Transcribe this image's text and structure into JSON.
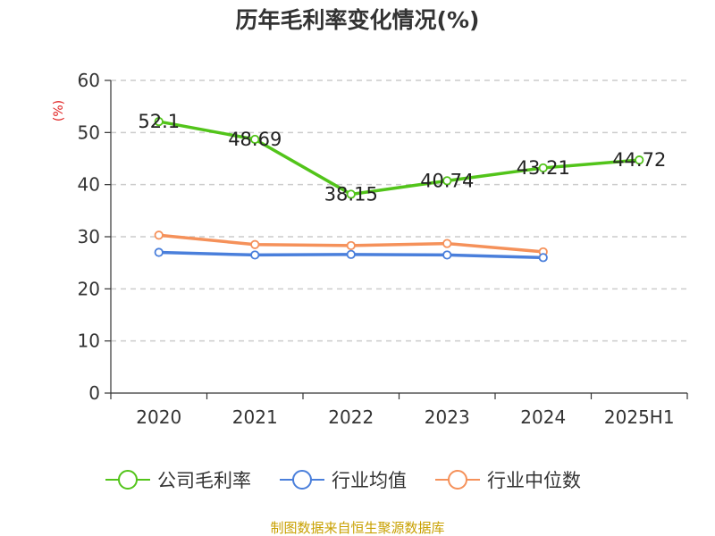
{
  "chart_data": {
    "type": "line",
    "title": "历年毛利率变化情况(%)",
    "ylabel": "(%)",
    "xlabel": "",
    "categories": [
      "2020",
      "2021",
      "2022",
      "2023",
      "2024",
      "2025H1"
    ],
    "ylim": [
      0,
      60
    ],
    "yticks": [
      0,
      10,
      20,
      30,
      40,
      50,
      60
    ],
    "grid": true,
    "legend_position": "bottom",
    "series": [
      {
        "name": "公司毛利率",
        "color": "#52c41a",
        "values": [
          52.1,
          48.69,
          38.15,
          40.74,
          43.21,
          44.72
        ],
        "labels": [
          "52.1",
          "48.69",
          "38.15",
          "40.74",
          "43.21",
          "44.72"
        ]
      },
      {
        "name": "行业均值",
        "color": "#4a7fdb",
        "values": [
          27.0,
          26.5,
          26.6,
          26.5,
          26.0,
          null
        ]
      },
      {
        "name": "行业中位数",
        "color": "#f5915a",
        "values": [
          30.3,
          28.5,
          28.3,
          28.7,
          27.1,
          null
        ]
      }
    ],
    "source": "制图数据来自恒生聚源数据库",
    "ylabel_color": "#e02020",
    "source_color": "#c8a000"
  }
}
